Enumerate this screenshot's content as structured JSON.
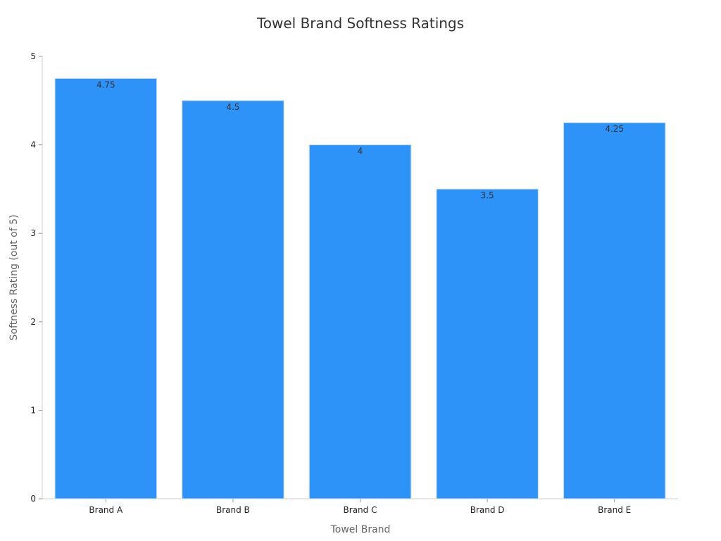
{
  "chart_data": {
    "type": "bar",
    "title": "Towel Brand Softness Ratings",
    "xlabel": "Towel Brand",
    "ylabel": "Softness Rating (out of 5)",
    "categories": [
      "Brand A",
      "Brand B",
      "Brand C",
      "Brand D",
      "Brand E"
    ],
    "values": [
      4.75,
      4.5,
      4,
      3.5,
      4.25
    ],
    "value_labels": [
      "4.75",
      "4.5",
      "4",
      "3.5",
      "4.25"
    ],
    "ylim": [
      0,
      5
    ],
    "yticks": [
      "0",
      "1",
      "2",
      "3",
      "4",
      "5"
    ],
    "grid": false,
    "legend": "none",
    "colors": {
      "bar": "#2e93f8",
      "bar_edge": "#c8dcf0",
      "axis": "#cccccc"
    }
  }
}
